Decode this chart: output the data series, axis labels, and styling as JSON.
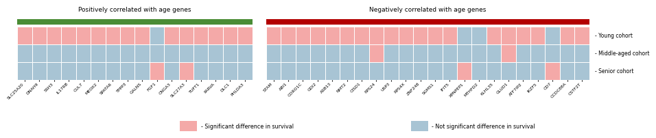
{
  "pos_genes": [
    "SLC25A20",
    "DNAH9",
    "SSH3",
    "IL17RB",
    "CUL7",
    "MEOX2",
    "SPATA6",
    "TPPP3",
    "GALNS",
    "FGF1",
    "CNGA3",
    "SLC27A3",
    "TUFT1",
    "PARVA",
    "DLC1",
    "PHLDA3"
  ],
  "neg_genes": [
    "STAM",
    "ABI1",
    "CORO1C",
    "GDI2",
    "ASB13",
    "NMT2",
    "CISD1",
    "RPS24",
    "USP3",
    "RPS4X",
    "ZNF248",
    "SGMS1",
    "IFIT5",
    "XPNPEP1",
    "MTHFD2",
    "KLHL35",
    "GLUD1",
    "ATF7IP2",
    "IKZF5",
    "CD7",
    "CCDC88A",
    "CSTF2T"
  ],
  "pos_title": "Positively correlated with age genes",
  "neg_title": "Negatively correlated with age genes",
  "cohort_labels": [
    "- Young cohort",
    "- Middle-aged cohort",
    "- Senior cohort"
  ],
  "pink": "#f4a9a8",
  "blue": "#a8c4d4",
  "green_bar": "#4a8c35",
  "red_bar": "#b30000",
  "sig_label": "- Significant difference in survival",
  "nonsig_label": "- Not significant difference in survival",
  "pos_data": [
    [
      1,
      1,
      1,
      1,
      1,
      1,
      1,
      1,
      1,
      0,
      1,
      1,
      1,
      1,
      1,
      1
    ],
    [
      0,
      0,
      0,
      0,
      0,
      0,
      0,
      0,
      0,
      0,
      0,
      0,
      0,
      0,
      0,
      0
    ],
    [
      0,
      0,
      0,
      0,
      0,
      0,
      0,
      0,
      0,
      1,
      0,
      1,
      0,
      0,
      0,
      0
    ]
  ],
  "neg_data": [
    [
      1,
      1,
      1,
      1,
      1,
      1,
      1,
      1,
      1,
      1,
      1,
      1,
      1,
      0,
      0,
      1,
      1,
      1,
      1,
      0,
      1,
      1
    ],
    [
      0,
      0,
      0,
      0,
      0,
      0,
      0,
      1,
      0,
      0,
      0,
      0,
      0,
      0,
      0,
      0,
      1,
      0,
      0,
      0,
      0,
      0
    ],
    [
      0,
      0,
      0,
      0,
      0,
      0,
      0,
      0,
      0,
      0,
      0,
      0,
      0,
      1,
      0,
      0,
      0,
      0,
      0,
      1,
      0,
      0
    ]
  ],
  "bg_color": "#ffffff",
  "title_fontsize": 6.5,
  "tick_fontsize": 4.5,
  "label_fontsize": 5.5,
  "legend_fontsize": 5.8
}
